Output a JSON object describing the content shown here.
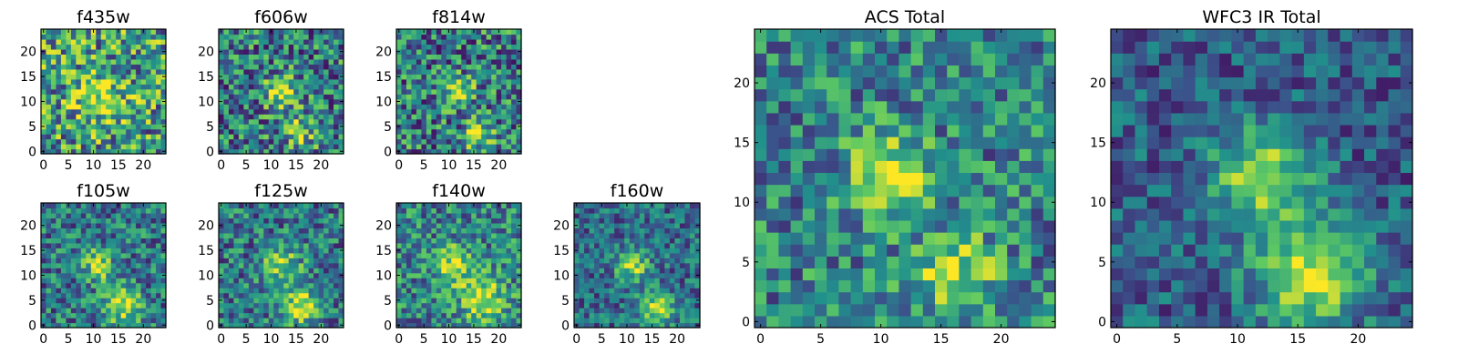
{
  "figure": {
    "colormap": "viridis",
    "colormap_stops": [
      "#440154",
      "#3b528b",
      "#21918c",
      "#5ec962",
      "#fde725"
    ]
  },
  "chart_data": [
    {
      "type": "heatmap",
      "title": "f435w",
      "grid_size": 25,
      "xlim": [
        0,
        24
      ],
      "ylim": [
        0,
        24
      ],
      "xticks": [
        "0",
        "5",
        "10",
        "15",
        "20"
      ],
      "yticks": [
        "0",
        "5",
        "10",
        "15",
        "20"
      ],
      "sources": [
        {
          "x": 11,
          "y": 11,
          "amp": 0.35,
          "sigma": 3.5
        }
      ],
      "base": 0.55,
      "noise": 0.42,
      "seed": 11
    },
    {
      "type": "heatmap",
      "title": "f606w",
      "grid_size": 25,
      "xlim": [
        0,
        24
      ],
      "ylim": [
        0,
        24
      ],
      "xticks": [
        "0",
        "5",
        "10",
        "15",
        "20"
      ],
      "yticks": [
        "0",
        "5",
        "10",
        "15",
        "20"
      ],
      "sources": [
        {
          "x": 12,
          "y": 12,
          "amp": 0.55,
          "sigma": 2.2
        },
        {
          "x": 16,
          "y": 4,
          "amp": 0.3,
          "sigma": 2.5
        }
      ],
      "base": 0.42,
      "noise": 0.38,
      "seed": 23
    },
    {
      "type": "heatmap",
      "title": "f814w",
      "grid_size": 25,
      "xlim": [
        0,
        24
      ],
      "ylim": [
        0,
        24
      ],
      "xticks": [
        "0",
        "5",
        "10",
        "15",
        "20"
      ],
      "yticks": [
        "0",
        "5",
        "10",
        "15",
        "20"
      ],
      "sources": [
        {
          "x": 12,
          "y": 12,
          "amp": 0.5,
          "sigma": 2.0
        },
        {
          "x": 16,
          "y": 3.5,
          "amp": 0.5,
          "sigma": 2.0
        }
      ],
      "base": 0.42,
      "noise": 0.38,
      "seed": 37
    },
    {
      "type": "heatmap",
      "title": "ACS Total",
      "grid_size": 25,
      "xlim": [
        0,
        24
      ],
      "ylim": [
        0,
        24
      ],
      "xticks": [
        "0",
        "5",
        "10",
        "15",
        "20"
      ],
      "yticks": [
        "0",
        "5",
        "10",
        "15",
        "20"
      ],
      "sources": [
        {
          "x": 11,
          "y": 12,
          "amp": 0.55,
          "sigma": 2.3
        },
        {
          "x": 16,
          "y": 4,
          "amp": 0.45,
          "sigma": 2.3
        }
      ],
      "base": 0.45,
      "noise": 0.3,
      "seed": 51
    },
    {
      "type": "heatmap",
      "title": "WFC3 IR Total",
      "grid_size": 25,
      "xlim": [
        0,
        24
      ],
      "ylim": [
        0,
        24
      ],
      "xticks": [
        "0",
        "5",
        "10",
        "15",
        "20"
      ],
      "yticks": [
        "0",
        "5",
        "10",
        "15",
        "20"
      ],
      "sources": [
        {
          "x": 12,
          "y": 12,
          "amp": 0.6,
          "sigma": 2.8
        },
        {
          "x": 16,
          "y": 4,
          "amp": 0.65,
          "sigma": 3.0
        }
      ],
      "base": 0.3,
      "noise": 0.22,
      "seed": 63
    },
    {
      "type": "heatmap",
      "title": "f105w",
      "grid_size": 25,
      "xlim": [
        0,
        24
      ],
      "ylim": [
        0,
        24
      ],
      "xticks": [
        "0",
        "5",
        "10",
        "15",
        "20"
      ],
      "yticks": [
        "0",
        "5",
        "10",
        "15",
        "20"
      ],
      "sources": [
        {
          "x": 11,
          "y": 12,
          "amp": 0.45,
          "sigma": 2.3
        },
        {
          "x": 16,
          "y": 4,
          "amp": 0.55,
          "sigma": 2.5
        }
      ],
      "base": 0.4,
      "noise": 0.3,
      "seed": 71
    },
    {
      "type": "heatmap",
      "title": "f125w",
      "grid_size": 25,
      "xlim": [
        0,
        24
      ],
      "ylim": [
        0,
        24
      ],
      "xticks": [
        "0",
        "5",
        "10",
        "15",
        "20"
      ],
      "yticks": [
        "0",
        "5",
        "10",
        "15",
        "20"
      ],
      "sources": [
        {
          "x": 12,
          "y": 12,
          "amp": 0.45,
          "sigma": 2.6
        },
        {
          "x": 16,
          "y": 4,
          "amp": 0.55,
          "sigma": 2.6
        }
      ],
      "base": 0.4,
      "noise": 0.3,
      "seed": 83
    },
    {
      "type": "heatmap",
      "title": "f140w",
      "grid_size": 25,
      "xlim": [
        0,
        24
      ],
      "ylim": [
        0,
        24
      ],
      "xticks": [
        "0",
        "5",
        "10",
        "15",
        "20"
      ],
      "yticks": [
        "0",
        "5",
        "10",
        "15",
        "20"
      ],
      "sources": [
        {
          "x": 11,
          "y": 12,
          "amp": 0.45,
          "sigma": 2.6
        },
        {
          "x": 17,
          "y": 5,
          "amp": 0.5,
          "sigma": 3.0
        }
      ],
      "base": 0.45,
      "noise": 0.3,
      "seed": 97
    },
    {
      "type": "heatmap",
      "title": "f160w",
      "grid_size": 25,
      "xlim": [
        0,
        24
      ],
      "ylim": [
        0,
        24
      ],
      "xticks": [
        "0",
        "5",
        "10",
        "15",
        "20"
      ],
      "yticks": [
        "0",
        "5",
        "10",
        "15",
        "20"
      ],
      "sources": [
        {
          "x": 11,
          "y": 12,
          "amp": 0.5,
          "sigma": 2.3
        },
        {
          "x": 16,
          "y": 3.5,
          "amp": 0.55,
          "sigma": 2.3
        }
      ],
      "base": 0.35,
      "noise": 0.25,
      "seed": 103
    }
  ]
}
